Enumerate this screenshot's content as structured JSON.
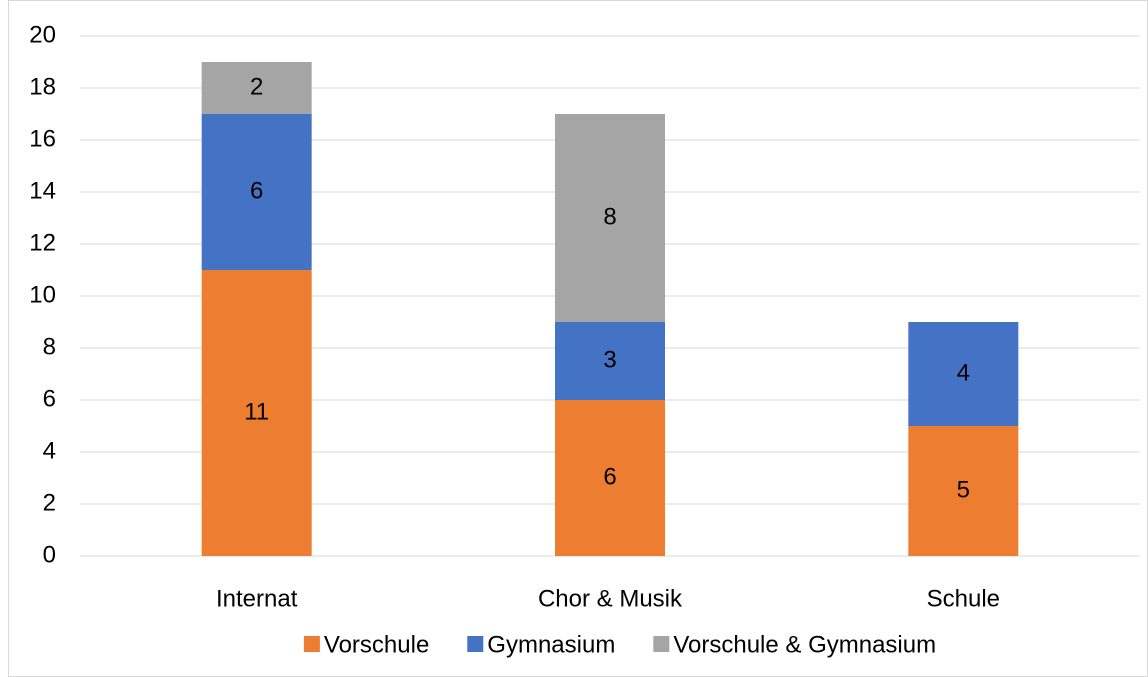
{
  "chart_data": {
    "type": "stacked_bar",
    "categories": [
      "Internat",
      "Chor & Musik",
      "Schule"
    ],
    "series": [
      {
        "name": "Vorschule",
        "color": "#ED7D31",
        "values": [
          11,
          6,
          5
        ]
      },
      {
        "name": "Gymnasium",
        "color": "#4472C4",
        "values": [
          6,
          3,
          4
        ]
      },
      {
        "name": "Vorschule & Gymnasium",
        "color": "#A5A5A5",
        "values": [
          2,
          8,
          null
        ]
      }
    ],
    "ylim": [
      0,
      20
    ],
    "yticks": [
      0,
      2,
      4,
      6,
      8,
      10,
      12,
      14,
      16,
      18,
      20
    ],
    "grid": true,
    "legend": "bottom"
  }
}
